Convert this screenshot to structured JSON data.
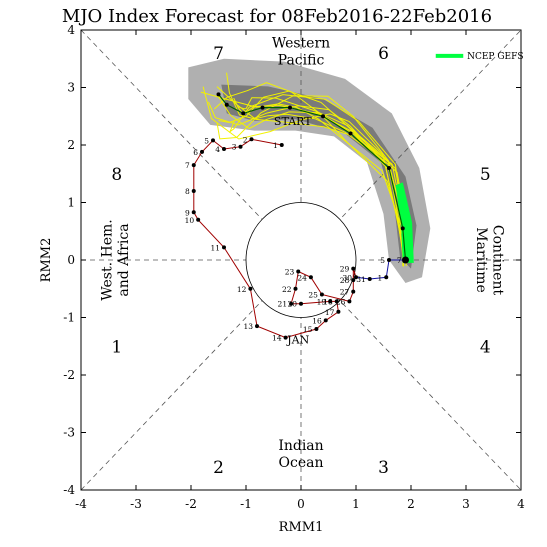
{
  "chart_data": {
    "type": "line",
    "title": "MJO Index Forecast for 08Feb2016-22Feb2016",
    "xlabel": "RMM1",
    "ylabel": "RMM2",
    "xlim": [
      -4,
      4
    ],
    "ylim": [
      -4,
      4
    ],
    "ticks": [
      "-4",
      "-3",
      "-2",
      "-1",
      "0",
      "1",
      "2",
      "3",
      "4"
    ],
    "phase_numbers": [
      {
        "label": "1",
        "x": -3.35,
        "y": -1.5
      },
      {
        "label": "2",
        "x": -1.5,
        "y": -3.6
      },
      {
        "label": "3",
        "x": 1.5,
        "y": -3.6
      },
      {
        "label": "4",
        "x": 3.35,
        "y": -1.5
      },
      {
        "label": "5",
        "x": 3.35,
        "y": 1.5
      },
      {
        "label": "6",
        "x": 1.5,
        "y": 3.6
      },
      {
        "label": "7",
        "x": -1.5,
        "y": 3.6
      },
      {
        "label": "8",
        "x": -3.35,
        "y": 1.5
      }
    ],
    "regions": {
      "top": [
        "Western",
        "Pacific"
      ],
      "bottom": [
        "Indian",
        "Ocean"
      ],
      "left": [
        "West. Hem.",
        "and Africa"
      ],
      "right": [
        "Maritime",
        "Continent"
      ]
    },
    "legend": {
      "label": "NCEP GEFS",
      "color": "#00ff40",
      "position": "top-right"
    },
    "month_label": "JAN",
    "start_label": "START",
    "observed": {
      "line_color": "#a00000",
      "label_color": "#000000",
      "points": [
        {
          "label": "1",
          "x": -0.35,
          "y": 2.0
        },
        {
          "label": "2",
          "x": -0.9,
          "y": 2.1
        },
        {
          "label": "3",
          "x": -1.1,
          "y": 1.97
        },
        {
          "label": "4",
          "x": -1.4,
          "y": 1.93
        },
        {
          "label": "5",
          "x": -1.6,
          "y": 2.08
        },
        {
          "label": "6",
          "x": -1.8,
          "y": 1.88
        },
        {
          "label": "7",
          "x": -1.95,
          "y": 1.65
        },
        {
          "label": "8",
          "x": -1.95,
          "y": 1.2
        },
        {
          "label": "9",
          "x": -1.95,
          "y": 0.83
        },
        {
          "label": "10",
          "x": -1.87,
          "y": 0.7
        },
        {
          "label": "11",
          "x": -1.4,
          "y": 0.22
        },
        {
          "label": "12",
          "x": -0.92,
          "y": -0.5
        },
        {
          "label": "13",
          "x": -0.8,
          "y": -1.15
        },
        {
          "label": "14",
          "x": -0.28,
          "y": -1.35
        },
        {
          "label": "15",
          "x": 0.28,
          "y": -1.2
        },
        {
          "label": "16",
          "x": 0.45,
          "y": -1.05
        },
        {
          "label": "17",
          "x": 0.68,
          "y": -0.9
        },
        {
          "label": "18",
          "x": 0.65,
          "y": -0.72
        },
        {
          "label": "19",
          "x": 0.53,
          "y": -0.72
        },
        {
          "label": "20",
          "x": 0.0,
          "y": -0.76
        },
        {
          "label": "21",
          "x": -0.18,
          "y": -0.76
        },
        {
          "label": "22",
          "x": -0.1,
          "y": -0.5
        },
        {
          "label": "23",
          "x": -0.05,
          "y": -0.2
        },
        {
          "label": "24",
          "x": 0.18,
          "y": -0.3
        },
        {
          "label": "25",
          "x": 0.38,
          "y": -0.6
        },
        {
          "label": "26",
          "x": 0.88,
          "y": -0.72
        },
        {
          "label": "27",
          "x": 0.95,
          "y": -0.55
        },
        {
          "label": "28",
          "x": 0.95,
          "y": -0.35
        },
        {
          "label": "29",
          "x": 0.95,
          "y": -0.15
        },
        {
          "label": "30",
          "x": 1.0,
          "y": -0.3
        }
      ]
    },
    "recent": {
      "line_color": "#1010a0",
      "points": [
        {
          "label": "31",
          "x": 1.25,
          "y": -0.33
        },
        {
          "label": "1",
          "x": 1.55,
          "y": -0.3
        },
        {
          "label": "5",
          "x": 1.6,
          "y": 0.0
        },
        {
          "label": "7",
          "x": 1.9,
          "y": 0.0
        }
      ]
    },
    "forecast_mean": {
      "line_color": "#006000",
      "points": [
        {
          "x": 1.9,
          "y": 0.0
        },
        {
          "x": 1.85,
          "y": 0.55
        },
        {
          "x": 1.6,
          "y": 1.6
        },
        {
          "x": 0.9,
          "y": 2.2
        },
        {
          "x": 0.4,
          "y": 2.5
        },
        {
          "x": -0.2,
          "y": 2.65
        },
        {
          "x": -0.7,
          "y": 2.65
        },
        {
          "x": -1.05,
          "y": 2.55
        },
        {
          "x": -1.35,
          "y": 2.7
        },
        {
          "x": -1.5,
          "y": 2.88
        }
      ]
    },
    "uncertainty_outer": [
      {
        "x": -2.05,
        "y": 3.35
      },
      {
        "x": -1.4,
        "y": 3.5
      },
      {
        "x": -0.3,
        "y": 3.45
      },
      {
        "x": 0.8,
        "y": 3.15
      },
      {
        "x": 1.65,
        "y": 2.55
      },
      {
        "x": 2.15,
        "y": 1.6
      },
      {
        "x": 2.35,
        "y": 0.55
      },
      {
        "x": 2.2,
        "y": -0.3
      },
      {
        "x": 1.9,
        "y": -0.4
      },
      {
        "x": 1.6,
        "y": 0.0
      },
      {
        "x": 1.5,
        "y": 0.8
      },
      {
        "x": 1.2,
        "y": 1.7
      },
      {
        "x": 0.6,
        "y": 2.15
      },
      {
        "x": -0.1,
        "y": 2.25
      },
      {
        "x": -0.85,
        "y": 2.25
      },
      {
        "x": -1.65,
        "y": 2.35
      },
      {
        "x": -2.05,
        "y": 2.8
      }
    ],
    "uncertainty_inner": [
      {
        "x": -1.45,
        "y": 3.05
      },
      {
        "x": -0.6,
        "y": 3.02
      },
      {
        "x": 0.4,
        "y": 2.8
      },
      {
        "x": 1.3,
        "y": 2.3
      },
      {
        "x": 1.9,
        "y": 1.45
      },
      {
        "x": 2.1,
        "y": 0.6
      },
      {
        "x": 2.0,
        "y": -0.15
      },
      {
        "x": 1.8,
        "y": 0.05
      },
      {
        "x": 1.7,
        "y": 0.9
      },
      {
        "x": 1.45,
        "y": 1.7
      },
      {
        "x": 0.8,
        "y": 2.2
      },
      {
        "x": -0.1,
        "y": 2.45
      },
      {
        "x": -0.85,
        "y": 2.42
      },
      {
        "x": -1.35,
        "y": 2.55
      }
    ],
    "gefs_band": [
      {
        "x": 2.05,
        "y": -0.05
      },
      {
        "x": 2.02,
        "y": 0.65
      },
      {
        "x": 1.85,
        "y": 1.35
      },
      {
        "x": 1.72,
        "y": 1.3
      },
      {
        "x": 1.82,
        "y": 0.6
      },
      {
        "x": 1.85,
        "y": -0.05
      }
    ]
  }
}
